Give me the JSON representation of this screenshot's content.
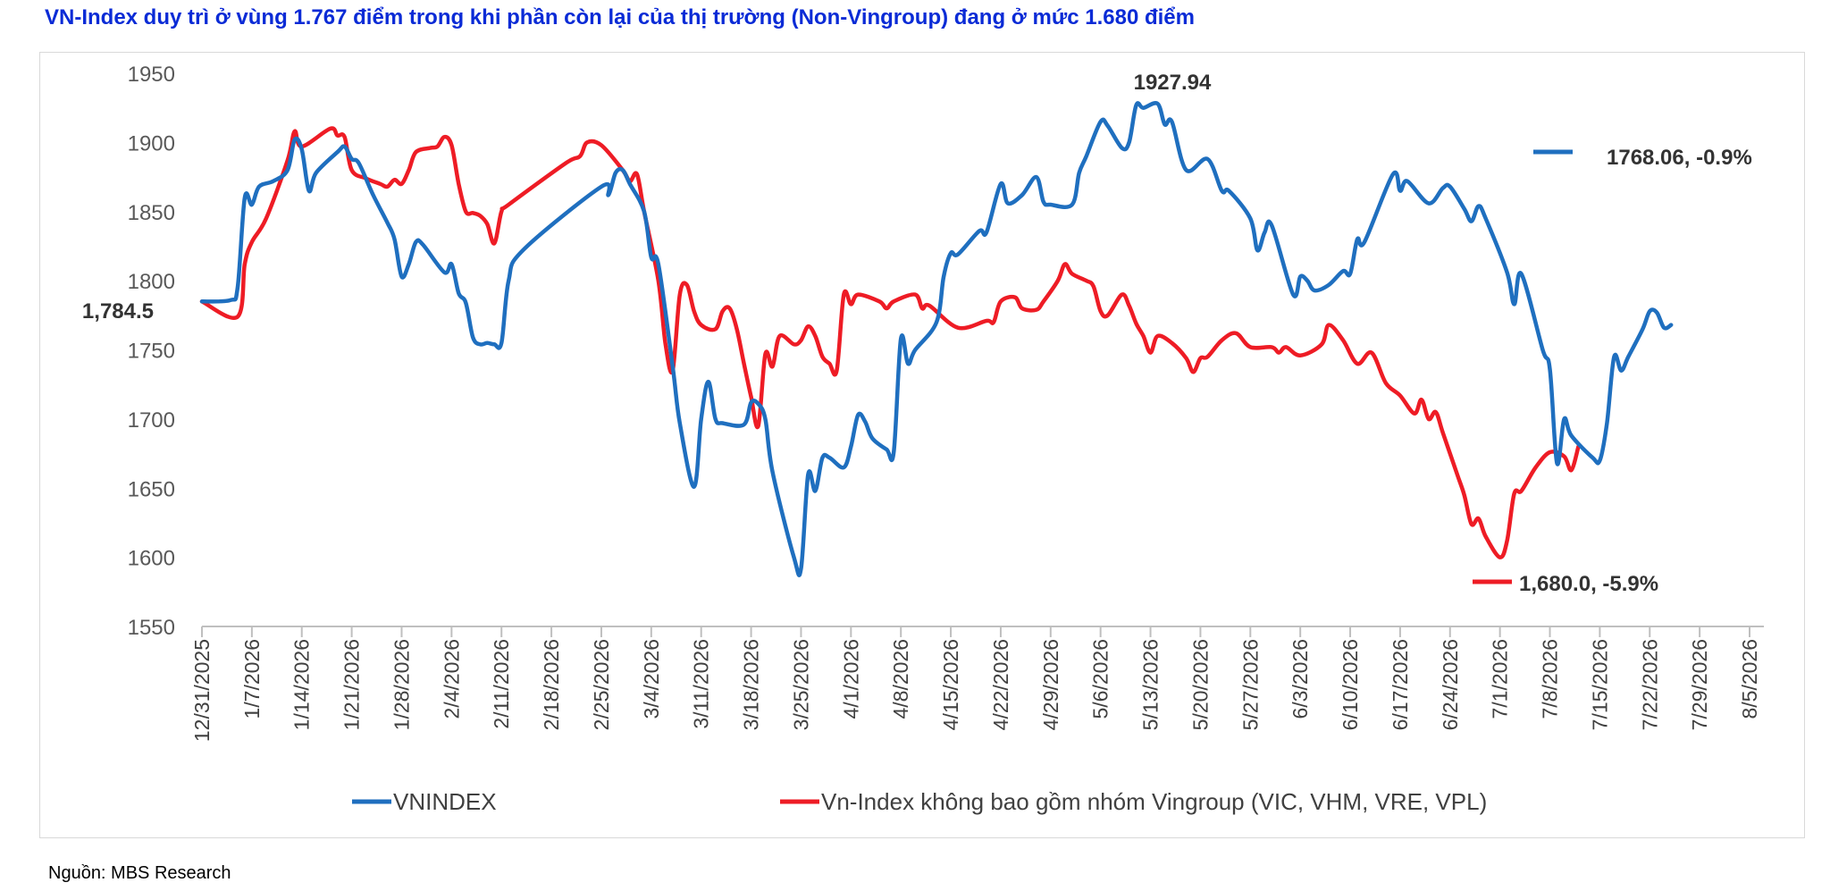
{
  "title": "VN-Index duy trì ở vùng 1.767 điểm trong khi phần còn lại của thị trường (Non-Vingroup) đang ở mức 1.680 điểm",
  "source": "Nguồn: MBS Research",
  "colors": {
    "vnindex": "#1f6fbf",
    "non_vingroup": "#ee1c25",
    "title": "#0a2bd6"
  },
  "chart_data": {
    "type": "line",
    "title": "",
    "xlabel": "",
    "ylabel": "",
    "ylim": [
      1550,
      1950
    ],
    "yticks": [
      1950,
      1900,
      1850,
      1800,
      1750,
      1700,
      1650,
      1600,
      1550
    ],
    "grid": false,
    "legend_position": "bottom",
    "x_tick_labels": [
      "12/31/2025",
      "1/7/2026",
      "1/14/2026",
      "1/21/2026",
      "1/28/2026",
      "2/4/2026",
      "2/11/2026",
      "2/18/2026",
      "2/25/2026",
      "3/4/2026",
      "3/11/2026",
      "3/18/2026",
      "3/25/2026",
      "4/1/2026",
      "4/8/2026",
      "4/15/2026",
      "4/22/2026",
      "4/29/2026",
      "5/6/2026",
      "5/13/2026",
      "5/20/2026",
      "5/27/2026",
      "6/3/2026",
      "6/10/2026",
      "6/17/2026",
      "6/24/2026",
      "7/1/2026",
      "7/8/2026",
      "7/15/2026",
      "7/22/2026",
      "7/29/2026",
      "8/5/2026"
    ],
    "series": [
      {
        "name": "VNINDEX",
        "color": "#1f6fbf",
        "points": [
          [
            0,
            1785
          ],
          [
            4,
            1786
          ],
          [
            5,
            1795
          ],
          [
            6,
            1860
          ],
          [
            7,
            1855
          ],
          [
            8,
            1868
          ],
          [
            10,
            1872
          ],
          [
            12,
            1880
          ],
          [
            13,
            1902
          ],
          [
            14,
            1895
          ],
          [
            15,
            1865
          ],
          [
            16,
            1878
          ],
          [
            19,
            1893
          ],
          [
            20,
            1897
          ],
          [
            21,
            1888
          ],
          [
            22,
            1885
          ],
          [
            24,
            1862
          ],
          [
            26,
            1842
          ],
          [
            27,
            1830
          ],
          [
            28,
            1803
          ],
          [
            29,
            1812
          ],
          [
            30,
            1828
          ],
          [
            31,
            1826
          ],
          [
            34,
            1806
          ],
          [
            35,
            1812
          ],
          [
            36,
            1791
          ],
          [
            37,
            1784
          ],
          [
            38,
            1759
          ],
          [
            39,
            1754
          ],
          [
            40,
            1755
          ],
          [
            41,
            1754
          ],
          [
            42,
            1755
          ],
          [
            43,
            1800
          ],
          [
            45,
            1822
          ],
          [
            56,
            1868
          ],
          [
            57,
            1862
          ],
          [
            58,
            1878
          ],
          [
            59,
            1880
          ],
          [
            60,
            1870
          ],
          [
            62,
            1850
          ],
          [
            63,
            1817
          ],
          [
            64,
            1812
          ],
          [
            66,
            1738
          ],
          [
            67,
            1697
          ],
          [
            69,
            1651
          ],
          [
            70,
            1700
          ],
          [
            71,
            1727
          ],
          [
            72,
            1700
          ],
          [
            73,
            1697
          ],
          [
            76,
            1696
          ],
          [
            77,
            1712
          ],
          [
            78,
            1711
          ],
          [
            79,
            1700
          ],
          [
            80,
            1662
          ],
          [
            83,
            1600
          ],
          [
            84,
            1592
          ],
          [
            85,
            1660
          ],
          [
            86,
            1648
          ],
          [
            87,
            1672
          ],
          [
            88,
            1672
          ],
          [
            90,
            1665
          ],
          [
            91,
            1680
          ],
          [
            92,
            1703
          ],
          [
            93,
            1698
          ],
          [
            94,
            1686
          ],
          [
            96,
            1678
          ],
          [
            97,
            1676
          ],
          [
            98,
            1758
          ],
          [
            99,
            1740
          ],
          [
            100,
            1750
          ],
          [
            103,
            1770
          ],
          [
            104,
            1803
          ],
          [
            105,
            1820
          ],
          [
            106,
            1819
          ],
          [
            109,
            1836
          ],
          [
            110,
            1835
          ],
          [
            112,
            1870
          ],
          [
            113,
            1856
          ],
          [
            115,
            1862
          ],
          [
            117,
            1875
          ],
          [
            118,
            1857
          ],
          [
            119,
            1855
          ],
          [
            122,
            1855
          ],
          [
            123,
            1878
          ],
          [
            124,
            1890
          ],
          [
            126,
            1915
          ],
          [
            127,
            1912
          ],
          [
            129,
            1896
          ],
          [
            130,
            1900
          ],
          [
            131,
            1927
          ],
          [
            132,
            1925
          ],
          [
            134,
            1928
          ],
          [
            135,
            1913
          ],
          [
            136,
            1915
          ],
          [
            138,
            1880
          ],
          [
            141,
            1888
          ],
          [
            143,
            1865
          ],
          [
            144,
            1865
          ],
          [
            147,
            1845
          ],
          [
            148,
            1822
          ],
          [
            149,
            1835
          ],
          [
            150,
            1840
          ],
          [
            153,
            1790
          ],
          [
            154,
            1803
          ],
          [
            155,
            1800
          ],
          [
            156,
            1793
          ],
          [
            158,
            1797
          ],
          [
            160,
            1807
          ],
          [
            161,
            1805
          ],
          [
            162,
            1830
          ],
          [
            163,
            1828
          ],
          [
            167,
            1877
          ],
          [
            168,
            1865
          ],
          [
            169,
            1872
          ],
          [
            172,
            1856
          ],
          [
            174,
            1867
          ],
          [
            175,
            1868
          ],
          [
            177,
            1852
          ],
          [
            178,
            1843
          ],
          [
            179,
            1854
          ],
          [
            180,
            1845
          ],
          [
            183,
            1806
          ],
          [
            184,
            1783
          ],
          [
            185,
            1805
          ],
          [
            188,
            1750
          ],
          [
            189,
            1736
          ],
          [
            190,
            1668
          ],
          [
            191,
            1700
          ],
          [
            192,
            1688
          ],
          [
            195,
            1672
          ],
          [
            196,
            1670
          ],
          [
            197,
            1697
          ],
          [
            198,
            1745
          ],
          [
            199,
            1735
          ],
          [
            200,
            1745
          ],
          [
            202,
            1765
          ],
          [
            203,
            1778
          ],
          [
            204,
            1777
          ],
          [
            205,
            1766
          ],
          [
            206,
            1768
          ]
        ],
        "last_label": "1768.06, -0.9%"
      },
      {
        "name": "Vn-Index không bao gồm nhóm Vingroup (VIC, VHM, VRE, VPL)",
        "color": "#ee1c25",
        "points": [
          [
            0,
            1785
          ],
          [
            5,
            1774
          ],
          [
            6,
            1812
          ],
          [
            7,
            1828
          ],
          [
            9,
            1845
          ],
          [
            12,
            1887
          ],
          [
            13,
            1908
          ],
          [
            14,
            1897
          ],
          [
            18,
            1910
          ],
          [
            19,
            1905
          ],
          [
            20,
            1904
          ],
          [
            21,
            1880
          ],
          [
            23,
            1874
          ],
          [
            25,
            1870
          ],
          [
            26,
            1868
          ],
          [
            27,
            1873
          ],
          [
            28,
            1870
          ],
          [
            29,
            1880
          ],
          [
            30,
            1893
          ],
          [
            32,
            1896
          ],
          [
            33,
            1897
          ],
          [
            34,
            1904
          ],
          [
            35,
            1898
          ],
          [
            36,
            1870
          ],
          [
            37,
            1850
          ],
          [
            38,
            1849
          ],
          [
            39,
            1847
          ],
          [
            40,
            1841
          ],
          [
            41,
            1827
          ],
          [
            42,
            1850
          ],
          [
            43,
            1855
          ],
          [
            51,
            1885
          ],
          [
            53,
            1890
          ],
          [
            54,
            1900
          ],
          [
            56,
            1898
          ],
          [
            59,
            1880
          ],
          [
            60,
            1872
          ],
          [
            61,
            1877
          ],
          [
            62,
            1850
          ],
          [
            64,
            1800
          ],
          [
            65,
            1754
          ],
          [
            66,
            1735
          ],
          [
            67,
            1790
          ],
          [
            68,
            1797
          ],
          [
            69,
            1778
          ],
          [
            70,
            1768
          ],
          [
            72,
            1765
          ],
          [
            73,
            1778
          ],
          [
            74,
            1780
          ],
          [
            75,
            1765
          ],
          [
            76,
            1740
          ],
          [
            77,
            1716
          ],
          [
            78,
            1695
          ],
          [
            79,
            1747
          ],
          [
            80,
            1738
          ],
          [
            81,
            1760
          ],
          [
            83,
            1754
          ],
          [
            84,
            1757
          ],
          [
            85,
            1767
          ],
          [
            86,
            1760
          ],
          [
            87,
            1745
          ],
          [
            88,
            1740
          ],
          [
            89,
            1735
          ],
          [
            90,
            1790
          ],
          [
            91,
            1783
          ],
          [
            92,
            1790
          ],
          [
            95,
            1785
          ],
          [
            96,
            1780
          ],
          [
            97,
            1785
          ],
          [
            100,
            1790
          ],
          [
            101,
            1780
          ],
          [
            102,
            1782
          ],
          [
            106,
            1766
          ],
          [
            110,
            1771
          ],
          [
            111,
            1770
          ],
          [
            112,
            1785
          ],
          [
            114,
            1788
          ],
          [
            115,
            1780
          ],
          [
            117,
            1779
          ],
          [
            118,
            1785
          ],
          [
            120,
            1800
          ],
          [
            121,
            1812
          ],
          [
            122,
            1805
          ],
          [
            124,
            1800
          ],
          [
            125,
            1796
          ],
          [
            126,
            1778
          ],
          [
            127,
            1775
          ],
          [
            129,
            1790
          ],
          [
            130,
            1782
          ],
          [
            131,
            1769
          ],
          [
            132,
            1760
          ],
          [
            133,
            1748
          ],
          [
            134,
            1760
          ],
          [
            136,
            1755
          ],
          [
            138,
            1744
          ],
          [
            139,
            1734
          ],
          [
            140,
            1744
          ],
          [
            141,
            1745
          ],
          [
            143,
            1757
          ],
          [
            145,
            1762
          ],
          [
            147,
            1752
          ],
          [
            150,
            1752
          ],
          [
            151,
            1748
          ],
          [
            152,
            1752
          ],
          [
            154,
            1746
          ],
          [
            157,
            1754
          ],
          [
            158,
            1768
          ],
          [
            160,
            1757
          ],
          [
            162,
            1740
          ],
          [
            164,
            1748
          ],
          [
            166,
            1726
          ],
          [
            168,
            1717
          ],
          [
            170,
            1704
          ],
          [
            171,
            1714
          ],
          [
            172,
            1700
          ],
          [
            173,
            1705
          ],
          [
            174,
            1690
          ],
          [
            176,
            1660
          ],
          [
            177,
            1645
          ],
          [
            178,
            1624
          ],
          [
            179,
            1628
          ],
          [
            180,
            1615
          ],
          [
            182,
            1600
          ],
          [
            183,
            1612
          ],
          [
            184,
            1646
          ],
          [
            185,
            1648
          ],
          [
            187,
            1665
          ],
          [
            189,
            1676
          ],
          [
            191,
            1673
          ],
          [
            192,
            1663
          ],
          [
            193,
            1680
          ]
        ],
        "last_label": "1,680.0, -5.9%"
      }
    ],
    "annotations": [
      {
        "text": "1,784.5",
        "x": 0,
        "y": 1784.5
      },
      {
        "text": "1927.94",
        "x": 134,
        "y": 1927.94
      },
      {
        "text": "1768.06, -0.9%",
        "x": 206,
        "y": 1768.06
      },
      {
        "text": "1,680.0, -5.9%",
        "x": 193,
        "y": 1680.0
      }
    ]
  }
}
